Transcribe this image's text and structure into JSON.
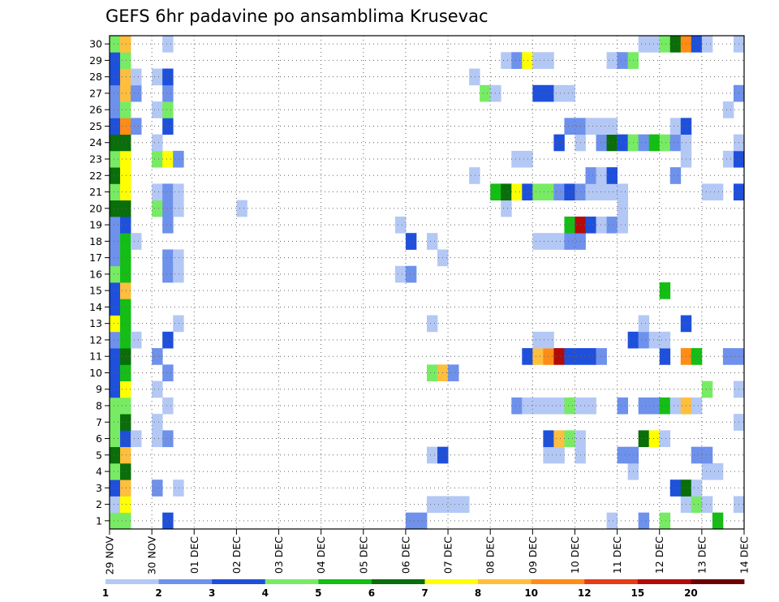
{
  "chart_data": {
    "type": "heatmap",
    "title": "GEFS 6hr padavine po ansamblima Krusevac",
    "x_tick_labels": [
      "29 NOV",
      "30 NOV",
      "01 DEC",
      "02 DEC",
      "03 DEC",
      "04 DEC",
      "05 DEC",
      "06 DEC",
      "07 DEC",
      "08 DEC",
      "09 DEC",
      "10 DEC",
      "11 DEC",
      "12 DEC",
      "13 DEC",
      "14 DEC"
    ],
    "y_tick_labels": [
      "1",
      "2",
      "3",
      "4",
      "5",
      "6",
      "7",
      "8",
      "9",
      "10",
      "11",
      "12",
      "13",
      "14",
      "15",
      "16",
      "17",
      "18",
      "19",
      "20",
      "21",
      "22",
      "23",
      "24",
      "25",
      "26",
      "27",
      "28",
      "29",
      "30"
    ],
    "x_range_steps": [
      0,
      60
    ],
    "y_range_members": [
      0,
      30
    ],
    "grid": true,
    "legend": {
      "placement": "bottom",
      "ticks": [
        "1",
        "2",
        "3",
        "4",
        "5",
        "6",
        "7",
        "8",
        "10",
        "12",
        "15",
        "20"
      ],
      "colors": [
        "#b4c8f5",
        "#6e91eb",
        "#1e50dc",
        "#78eb64",
        "#14be14",
        "#0a6e0a",
        "#ffff00",
        "#ffbe3c",
        "#ff8c14",
        "#e63c14",
        "#b40a0a",
        "#6e0000"
      ]
    },
    "cells_note": "each cell: [time_step_index (6h steps from 29 NOV 00z), ensemble_member, color_class_index]",
    "cells": [
      [
        0,
        0,
        3
      ],
      [
        1,
        0,
        3
      ],
      [
        5,
        0,
        2
      ],
      [
        28,
        0,
        1
      ],
      [
        29,
        0,
        1
      ],
      [
        47,
        0,
        0
      ],
      [
        50,
        0,
        1
      ],
      [
        52,
        0,
        3
      ],
      [
        57,
        0,
        4
      ],
      [
        0,
        1,
        0
      ],
      [
        1,
        1,
        6
      ],
      [
        30,
        1,
        0
      ],
      [
        31,
        1,
        0
      ],
      [
        32,
        1,
        0
      ],
      [
        33,
        1,
        0
      ],
      [
        54,
        1,
        0
      ],
      [
        55,
        1,
        3
      ],
      [
        56,
        1,
        0
      ],
      [
        59,
        1,
        0
      ],
      [
        0,
        2,
        2
      ],
      [
        1,
        2,
        7
      ],
      [
        4,
        2,
        1
      ],
      [
        6,
        2,
        0
      ],
      [
        53,
        2,
        2
      ],
      [
        54,
        2,
        5
      ],
      [
        55,
        2,
        0
      ],
      [
        0,
        3,
        3
      ],
      [
        1,
        3,
        5
      ],
      [
        49,
        3,
        0
      ],
      [
        56,
        3,
        0
      ],
      [
        57,
        3,
        0
      ],
      [
        0,
        4,
        5
      ],
      [
        1,
        4,
        7
      ],
      [
        30,
        4,
        0
      ],
      [
        31,
        4,
        2
      ],
      [
        41,
        4,
        0
      ],
      [
        42,
        4,
        0
      ],
      [
        44,
        4,
        0
      ],
      [
        48,
        4,
        1
      ],
      [
        49,
        4,
        1
      ],
      [
        55,
        4,
        1
      ],
      [
        56,
        4,
        1
      ],
      [
        0,
        5,
        3
      ],
      [
        1,
        5,
        2
      ],
      [
        2,
        5,
        0
      ],
      [
        4,
        5,
        0
      ],
      [
        5,
        5,
        1
      ],
      [
        41,
        5,
        2
      ],
      [
        42,
        5,
        7
      ],
      [
        43,
        5,
        3
      ],
      [
        44,
        5,
        0
      ],
      [
        50,
        5,
        5
      ],
      [
        51,
        5,
        6
      ],
      [
        52,
        5,
        0
      ],
      [
        0,
        6,
        3
      ],
      [
        1,
        6,
        5
      ],
      [
        4,
        6,
        0
      ],
      [
        59,
        6,
        0
      ],
      [
        0,
        7,
        3
      ],
      [
        1,
        7,
        3
      ],
      [
        5,
        7,
        0
      ],
      [
        38,
        7,
        1
      ],
      [
        39,
        7,
        0
      ],
      [
        40,
        7,
        0
      ],
      [
        41,
        7,
        0
      ],
      [
        42,
        7,
        0
      ],
      [
        43,
        7,
        3
      ],
      [
        44,
        7,
        0
      ],
      [
        45,
        7,
        0
      ],
      [
        48,
        7,
        1
      ],
      [
        50,
        7,
        1
      ],
      [
        51,
        7,
        1
      ],
      [
        52,
        7,
        4
      ],
      [
        53,
        7,
        0
      ],
      [
        54,
        7,
        7
      ],
      [
        55,
        7,
        0
      ],
      [
        0,
        8,
        2
      ],
      [
        1,
        8,
        6
      ],
      [
        4,
        8,
        0
      ],
      [
        56,
        8,
        3
      ],
      [
        59,
        8,
        0
      ],
      [
        0,
        9,
        2
      ],
      [
        1,
        9,
        4
      ],
      [
        5,
        9,
        1
      ],
      [
        30,
        9,
        3
      ],
      [
        31,
        9,
        7
      ],
      [
        32,
        9,
        1
      ],
      [
        0,
        10,
        2
      ],
      [
        1,
        10,
        5
      ],
      [
        4,
        10,
        1
      ],
      [
        39,
        10,
        2
      ],
      [
        40,
        10,
        7
      ],
      [
        41,
        10,
        8
      ],
      [
        42,
        10,
        10
      ],
      [
        43,
        10,
        2
      ],
      [
        44,
        10,
        2
      ],
      [
        45,
        10,
        2
      ],
      [
        46,
        10,
        1
      ],
      [
        52,
        10,
        2
      ],
      [
        54,
        10,
        8
      ],
      [
        55,
        10,
        4
      ],
      [
        58,
        10,
        1
      ],
      [
        59,
        10,
        1
      ],
      [
        0,
        11,
        1
      ],
      [
        1,
        11,
        4
      ],
      [
        2,
        11,
        0
      ],
      [
        5,
        11,
        2
      ],
      [
        40,
        11,
        0
      ],
      [
        41,
        11,
        0
      ],
      [
        49,
        11,
        2
      ],
      [
        50,
        11,
        1
      ],
      [
        51,
        11,
        0
      ],
      [
        52,
        11,
        0
      ],
      [
        0,
        12,
        6
      ],
      [
        1,
        12,
        4
      ],
      [
        6,
        12,
        0
      ],
      [
        30,
        12,
        0
      ],
      [
        50,
        12,
        0
      ],
      [
        54,
        12,
        2
      ],
      [
        0,
        13,
        2
      ],
      [
        1,
        13,
        4
      ],
      [
        0,
        14,
        2
      ],
      [
        1,
        14,
        7
      ],
      [
        52,
        14,
        4
      ],
      [
        0,
        15,
        3
      ],
      [
        1,
        15,
        4
      ],
      [
        5,
        15,
        1
      ],
      [
        6,
        15,
        0
      ],
      [
        27,
        15,
        0
      ],
      [
        28,
        15,
        1
      ],
      [
        0,
        16,
        1
      ],
      [
        1,
        16,
        4
      ],
      [
        5,
        16,
        1
      ],
      [
        6,
        16,
        0
      ],
      [
        31,
        16,
        0
      ],
      [
        0,
        17,
        1
      ],
      [
        1,
        17,
        4
      ],
      [
        2,
        17,
        0
      ],
      [
        28,
        17,
        2
      ],
      [
        30,
        17,
        0
      ],
      [
        40,
        17,
        0
      ],
      [
        41,
        17,
        0
      ],
      [
        42,
        17,
        0
      ],
      [
        43,
        17,
        1
      ],
      [
        44,
        17,
        1
      ],
      [
        0,
        18,
        1
      ],
      [
        1,
        18,
        2
      ],
      [
        5,
        18,
        1
      ],
      [
        27,
        18,
        0
      ],
      [
        43,
        18,
        4
      ],
      [
        44,
        18,
        10
      ],
      [
        45,
        18,
        2
      ],
      [
        46,
        18,
        0
      ],
      [
        47,
        18,
        1
      ],
      [
        48,
        18,
        0
      ],
      [
        0,
        19,
        5
      ],
      [
        1,
        19,
        5
      ],
      [
        4,
        19,
        3
      ],
      [
        5,
        19,
        1
      ],
      [
        6,
        19,
        0
      ],
      [
        12,
        19,
        0
      ],
      [
        37,
        19,
        0
      ],
      [
        48,
        19,
        0
      ],
      [
        0,
        20,
        3
      ],
      [
        1,
        20,
        6
      ],
      [
        4,
        20,
        0
      ],
      [
        5,
        20,
        1
      ],
      [
        6,
        20,
        0
      ],
      [
        36,
        20,
        4
      ],
      [
        37,
        20,
        5
      ],
      [
        38,
        20,
        6
      ],
      [
        39,
        20,
        2
      ],
      [
        40,
        20,
        3
      ],
      [
        41,
        20,
        3
      ],
      [
        42,
        20,
        1
      ],
      [
        43,
        20,
        2
      ],
      [
        44,
        20,
        1
      ],
      [
        45,
        20,
        0
      ],
      [
        46,
        20,
        0
      ],
      [
        47,
        20,
        0
      ],
      [
        48,
        20,
        0
      ],
      [
        56,
        20,
        0
      ],
      [
        57,
        20,
        0
      ],
      [
        59,
        20,
        2
      ],
      [
        0,
        21,
        5
      ],
      [
        1,
        21,
        6
      ],
      [
        34,
        21,
        0
      ],
      [
        45,
        21,
        1
      ],
      [
        46,
        21,
        0
      ],
      [
        47,
        21,
        2
      ],
      [
        53,
        21,
        1
      ],
      [
        0,
        22,
        3
      ],
      [
        1,
        22,
        6
      ],
      [
        4,
        22,
        3
      ],
      [
        5,
        22,
        6
      ],
      [
        6,
        22,
        1
      ],
      [
        38,
        22,
        0
      ],
      [
        39,
        22,
        0
      ],
      [
        54,
        22,
        0
      ],
      [
        58,
        22,
        0
      ],
      [
        59,
        22,
        2
      ],
      [
        0,
        23,
        5
      ],
      [
        1,
        23,
        5
      ],
      [
        4,
        23,
        0
      ],
      [
        42,
        23,
        2
      ],
      [
        44,
        23,
        0
      ],
      [
        46,
        23,
        1
      ],
      [
        47,
        23,
        5
      ],
      [
        48,
        23,
        2
      ],
      [
        49,
        23,
        3
      ],
      [
        50,
        23,
        1
      ],
      [
        51,
        23,
        4
      ],
      [
        52,
        23,
        3
      ],
      [
        53,
        23,
        1
      ],
      [
        54,
        23,
        0
      ],
      [
        59,
        23,
        0
      ],
      [
        0,
        24,
        2
      ],
      [
        1,
        24,
        8
      ],
      [
        2,
        24,
        1
      ],
      [
        5,
        24,
        2
      ],
      [
        43,
        24,
        1
      ],
      [
        44,
        24,
        1
      ],
      [
        45,
        24,
        0
      ],
      [
        46,
        24,
        0
      ],
      [
        47,
        24,
        0
      ],
      [
        53,
        24,
        0
      ],
      [
        54,
        24,
        2
      ],
      [
        0,
        25,
        1
      ],
      [
        1,
        25,
        3
      ],
      [
        4,
        25,
        0
      ],
      [
        5,
        25,
        3
      ],
      [
        58,
        25,
        0
      ],
      [
        0,
        26,
        1
      ],
      [
        1,
        26,
        7
      ],
      [
        2,
        26,
        1
      ],
      [
        5,
        26,
        1
      ],
      [
        35,
        26,
        3
      ],
      [
        36,
        26,
        0
      ],
      [
        40,
        26,
        2
      ],
      [
        41,
        26,
        2
      ],
      [
        42,
        26,
        0
      ],
      [
        43,
        26,
        0
      ],
      [
        59,
        26,
        1
      ],
      [
        0,
        27,
        2
      ],
      [
        1,
        27,
        7
      ],
      [
        2,
        27,
        0
      ],
      [
        4,
        27,
        0
      ],
      [
        5,
        27,
        2
      ],
      [
        34,
        27,
        0
      ],
      [
        0,
        28,
        2
      ],
      [
        1,
        28,
        3
      ],
      [
        37,
        28,
        0
      ],
      [
        38,
        28,
        1
      ],
      [
        39,
        28,
        6
      ],
      [
        40,
        28,
        0
      ],
      [
        41,
        28,
        0
      ],
      [
        47,
        28,
        0
      ],
      [
        48,
        28,
        1
      ],
      [
        49,
        28,
        3
      ],
      [
        0,
        29,
        3
      ],
      [
        1,
        29,
        7
      ],
      [
        5,
        29,
        0
      ],
      [
        50,
        29,
        0
      ],
      [
        51,
        29,
        0
      ],
      [
        52,
        29,
        3
      ],
      [
        53,
        29,
        5
      ],
      [
        54,
        29,
        8
      ],
      [
        55,
        29,
        2
      ],
      [
        56,
        29,
        0
      ],
      [
        59,
        29,
        0
      ]
    ]
  }
}
